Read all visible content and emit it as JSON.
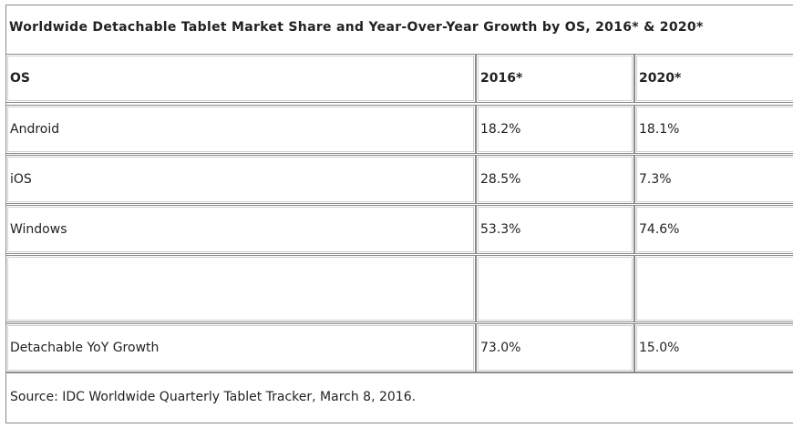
{
  "table": {
    "title": "Worldwide Detachable Tablet Market Share and Year-Over-Year Growth by OS, 2016* & 2020*",
    "headers": [
      "OS",
      "2016*",
      "2020*"
    ],
    "rows": [
      [
        "Android",
        "18.2%",
        "18.1%"
      ],
      [
        "iOS",
        "28.5%",
        "7.3%"
      ],
      [
        "Windows",
        "53.3%",
        "74.6%"
      ],
      [
        "",
        "",
        ""
      ],
      [
        "Detachable YoY Growth",
        "73.0%",
        "15.0%"
      ]
    ],
    "source": "Source: IDC Worldwide Quarterly Tablet Tracker, March 8, 2016."
  }
}
